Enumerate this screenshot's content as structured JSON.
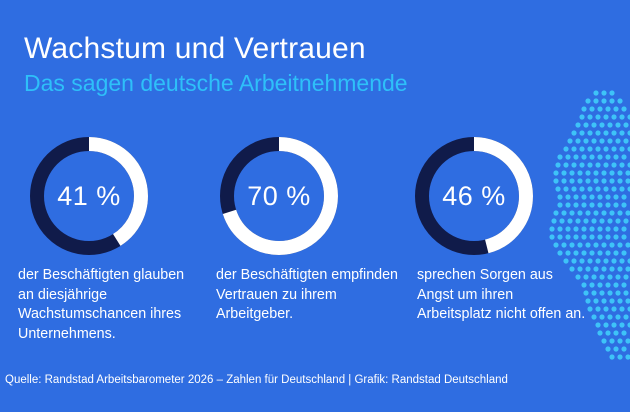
{
  "header": {
    "title": "Wachstum und Vertrauen",
    "subtitle": "Das sagen deutsche Arbeitnehmende"
  },
  "chart_data": {
    "type": "donut",
    "title": "Wachstum und Vertrauen",
    "subtitle": "Das sagen deutsche Arbeitnehmende",
    "items": [
      {
        "value": 41,
        "label": "41 %",
        "description": "der Beschäftigten glauben an diesjährige Wachstumschancen ihres Unternehmens."
      },
      {
        "value": 70,
        "label": "70 %",
        "description": "der Beschäftigten empfinden Vertrauen zu ihrem Arbeitgeber."
      },
      {
        "value": 46,
        "label": "46 %",
        "description": "sprechen Sorgen aus Angst um ihren Arbeitsplatz nicht offen an."
      }
    ],
    "max": 100
  },
  "footer": {
    "source": "Quelle: Randstad Arbeitsbarometer 2026 – Zahlen für Deutschland | Grafik: Randstad Deutschland"
  },
  "colors": {
    "background": "#2f6de1",
    "ring_filled": "#ffffff",
    "ring_track": "#101b4a",
    "subtitle": "#2ec0f9",
    "map_dots": "#3ec3f8"
  },
  "decoration": {
    "map_icon": "germany-dot-map-icon"
  }
}
